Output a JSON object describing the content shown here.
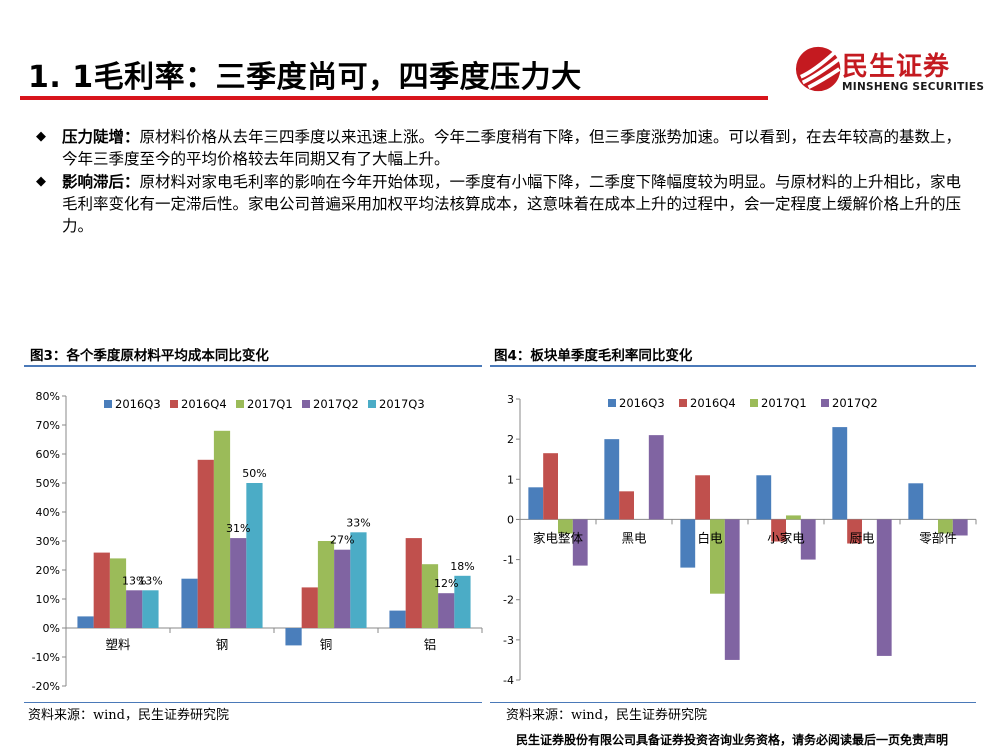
{
  "header": {
    "title": "1. 1毛利率：三季度尚可，四季度压力大",
    "logo_cn": "民生证券",
    "logo_en": "MINSHENG SECURITIES",
    "logo_icon": "minsheng-logo-icon",
    "accent_color": "#d8151c"
  },
  "bullets": [
    {
      "head": "压力陡增：",
      "text": "原材料价格从去年三四季度以来迅速上涨。今年二季度稍有下降，但三季度涨势加速。可以看到，在去年较高的基数上，今年三季度至今的平均价格较去年同期又有了大幅上升。"
    },
    {
      "head": "影响滞后：",
      "text": "原材料对家电毛利率的影响在今年开始体现，一季度有小幅下降，二季度下降幅度较为明显。与原材料的上升相比，家电毛利率变化有一定滞后性。家电公司普遍采用加权平均法核算成本，这意味着在成本上升的过程中，会一定程度上缓解价格上升的压力。"
    }
  ],
  "figures": {
    "left": {
      "title": "图3：各个季度原材料平均成本同比变化",
      "source": "资料来源：wind，民生证券研究院"
    },
    "right": {
      "title": "图4：板块单季度毛利率同比变化",
      "source": "资料来源：wind，民生证券研究院"
    }
  },
  "footer": "民生证券股份有限公司具备证券投资咨询业务资格，请务必阅读最后一页免责声明",
  "chart_data": [
    {
      "type": "bar",
      "categories": [
        "塑料",
        "钢",
        "铜",
        "铝"
      ],
      "series": [
        {
          "name": "2016Q3",
          "color": "#4a7ebb",
          "values": [
            4,
            17,
            -6,
            6
          ]
        },
        {
          "name": "2016Q4",
          "color": "#c0504d",
          "values": [
            26,
            58,
            14,
            31
          ]
        },
        {
          "name": "2017Q1",
          "color": "#9bbb59",
          "values": [
            24,
            68,
            30,
            22
          ]
        },
        {
          "name": "2017Q2",
          "color": "#8064a2",
          "values": [
            13,
            31,
            27,
            12
          ]
        },
        {
          "name": "2017Q3",
          "color": "#4bacc6",
          "values": [
            13,
            50,
            33,
            18
          ]
        }
      ],
      "ylim": [
        -20,
        80
      ],
      "yticks": [
        "-20%",
        "-10%",
        "0%",
        "10%",
        "20%",
        "30%",
        "40%",
        "50%",
        "60%",
        "70%",
        "80%"
      ],
      "data_labels": [
        {
          "text": "13%",
          "category": 0,
          "series": 3
        },
        {
          "text": "13%",
          "category": 0,
          "series": 4
        },
        {
          "text": "31%",
          "category": 1,
          "series": 3
        },
        {
          "text": "50%",
          "category": 1,
          "series": 4
        },
        {
          "text": "27%",
          "category": 2,
          "series": 3
        },
        {
          "text": "33%",
          "category": 2,
          "series": 4
        },
        {
          "text": "12%",
          "category": 3,
          "series": 3
        },
        {
          "text": "18%",
          "category": 3,
          "series": 4
        }
      ],
      "legend": "top",
      "grid": false
    },
    {
      "type": "bar",
      "categories": [
        "家电整体",
        "黑电",
        "白电",
        "小家电",
        "厨电",
        "零部件"
      ],
      "series": [
        {
          "name": "2016Q3",
          "color": "#4a7ebb",
          "values": [
            0.8,
            2.0,
            -1.2,
            1.1,
            2.3,
            0.9
          ]
        },
        {
          "name": "2016Q4",
          "color": "#c0504d",
          "values": [
            1.65,
            0.7,
            1.1,
            -0.55,
            -0.6,
            0
          ]
        },
        {
          "name": "2017Q1",
          "color": "#9bbb59",
          "values": [
            -0.35,
            0,
            -1.85,
            0.1,
            0,
            -0.35
          ]
        },
        {
          "name": "2017Q2",
          "color": "#8064a2",
          "values": [
            -1.15,
            2.1,
            -3.5,
            -1.0,
            -3.4,
            -0.4
          ]
        }
      ],
      "ylim": [
        -4,
        3
      ],
      "yticks": [
        "-4",
        "-3",
        "-2",
        "-1",
        "0",
        "1",
        "2",
        "3"
      ],
      "legend": "top",
      "grid": false
    }
  ]
}
